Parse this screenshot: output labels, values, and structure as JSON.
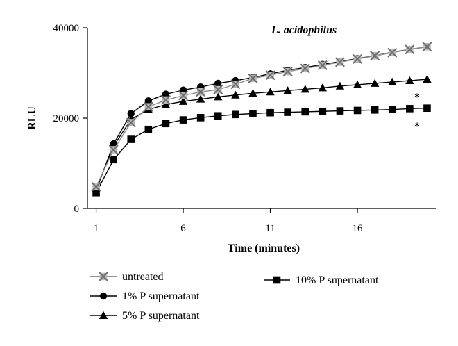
{
  "chart_data": {
    "type": "line",
    "title": "L. acidophilus",
    "xlabel": "Time (minutes)",
    "ylabel": "RLU",
    "x": [
      1,
      2,
      3,
      4,
      5,
      6,
      7,
      8,
      9,
      10,
      11,
      12,
      13,
      14,
      15,
      16,
      17,
      18,
      19,
      20
    ],
    "xlim": [
      0.5,
      20.5
    ],
    "ylim": [
      0,
      40000
    ],
    "x_ticks": [
      "1",
      "6",
      "11",
      "16"
    ],
    "y_ticks": [
      "0",
      "20000",
      "40000"
    ],
    "grid": false,
    "legend_position": "bottom",
    "series": [
      {
        "name": "untreated",
        "marker": "x-square",
        "color": "#8a8a8a",
        "values": [
          4800,
          13000,
          19000,
          22500,
          24000,
          25000,
          25800,
          26300,
          27500,
          28800,
          29500,
          30300,
          31000,
          31700,
          32400,
          33100,
          33800,
          34500,
          35200,
          35800
        ]
      },
      {
        "name": "1% P supernatant",
        "marker": "circle",
        "color": "#000000",
        "values": [
          4000,
          14300,
          21000,
          23800,
          25300,
          26200,
          26900,
          27700,
          28300,
          29000,
          29800,
          30600,
          31200,
          31900,
          32500,
          33200,
          33800,
          34600,
          35200,
          35800
        ]
      },
      {
        "name": "5% P supernatant",
        "marker": "triangle",
        "color": "#000000",
        "values": [
          4300,
          13800,
          19700,
          21900,
          23000,
          23700,
          24200,
          24700,
          25100,
          25500,
          25800,
          26100,
          26400,
          26700,
          27100,
          27400,
          27700,
          28000,
          28300,
          28600
        ]
      },
      {
        "name": "10% P supernatant",
        "marker": "square",
        "color": "#000000",
        "values": [
          3500,
          10800,
          15300,
          17500,
          18800,
          19600,
          20100,
          20500,
          20800,
          21000,
          21200,
          21300,
          21400,
          21500,
          21600,
          21700,
          21800,
          21900,
          22100,
          22200
        ]
      }
    ],
    "annotations": [
      "*",
      "*"
    ]
  }
}
